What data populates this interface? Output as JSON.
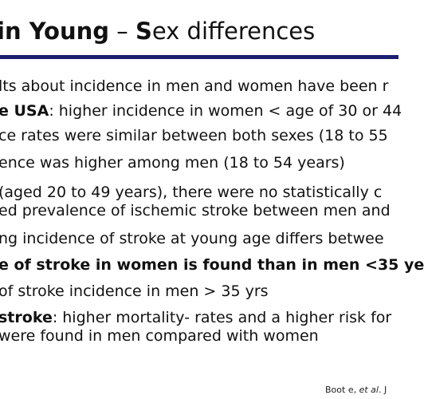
{
  "slide": {
    "title_bold": "in Young",
    "title_dash": " – ",
    "title_s": "S",
    "title_rest": "ex differences",
    "lines": [
      {
        "pre": "lts about incidence in men and women have been r",
        "bold": "",
        "post": ""
      },
      {
        "pre": "",
        "bold": "e USA",
        "post": ": higher incidence in women < age of 30 or 44"
      },
      {
        "pre": "ce rates were similar between both sexes (18 to 55",
        "bold": "",
        "post": ""
      },
      {
        "pre": "ence was higher among men (18 to 54 years)",
        "bold": "",
        "post": ""
      },
      {
        "pre": " (aged 20 to 49 years), there were no statistically  c",
        "bold": "",
        "post": ""
      },
      {
        "pre": "ed prevalence of ischemic stroke between men and",
        "bold": "",
        "post": ""
      },
      {
        "pre": "ng incidence of stroke at young age differs betwee",
        "bold": "",
        "post": ""
      },
      {
        "pre": "",
        "bold": "e of stroke in women is found than in men <35 ye",
        "post": ""
      },
      {
        "pre": " of stroke incidence in men > 35 yrs",
        "bold": "",
        "post": ""
      },
      {
        "pre": "",
        "bold": "stroke",
        "post": ": higher mortality- rates and a higher risk for"
      },
      {
        "pre": " were found in men compared with women",
        "bold": "",
        "post": ""
      }
    ],
    "citation_pre": "Boot e, ",
    "citation_italic": "et al",
    "citation_post": ". J"
  }
}
